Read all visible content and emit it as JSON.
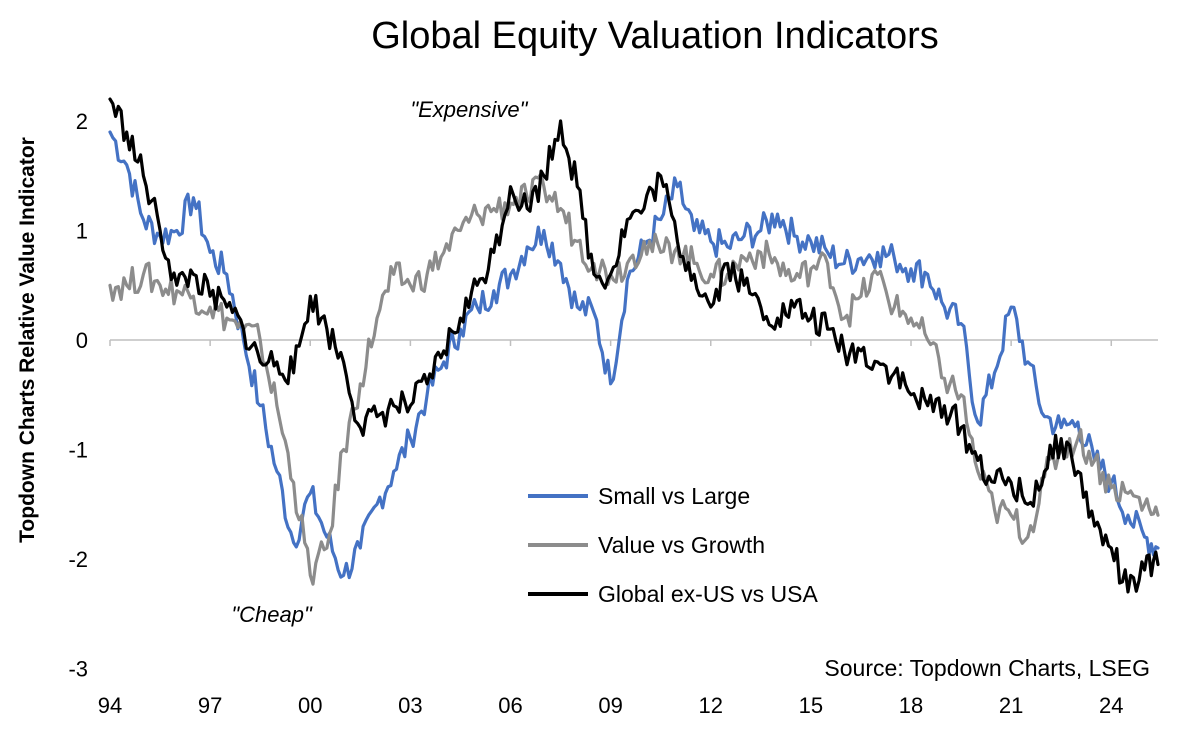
{
  "chart_data": {
    "type": "line",
    "title": "Global Equity Valuation Indicators",
    "xlabel": "",
    "ylabel": "Topdown Charts Relative Value Indicator",
    "xlim": [
      1994.0,
      2025.4
    ],
    "ylim": [
      -3,
      2.3
    ],
    "x_ticks": [
      "94",
      "97",
      "00",
      "03",
      "06",
      "09",
      "12",
      "15",
      "18",
      "21",
      "24"
    ],
    "y_ticks": [
      "-3",
      "-2",
      "-1",
      "0",
      "1",
      "2"
    ],
    "legend_position": "lower-middle",
    "source": "Source: Topdown Charts, LSEG",
    "annotations": [
      {
        "text": "\"Expensive\"",
        "x": 2007.3,
        "y": 2.1
      },
      {
        "text": "\"Cheap\"",
        "x": 1999.8,
        "y": -2.2
      }
    ],
    "x": [
      1994.0,
      1994.5,
      1995.0,
      1995.5,
      1996.0,
      1996.5,
      1997.0,
      1997.5,
      1998.0,
      1998.5,
      1999.0,
      1999.5,
      2000.0,
      2000.5,
      2001.0,
      2001.5,
      2002.0,
      2002.5,
      2003.0,
      2003.5,
      2004.0,
      2004.5,
      2005.0,
      2005.5,
      2006.0,
      2006.5,
      2007.0,
      2007.5,
      2008.0,
      2008.5,
      2009.0,
      2009.5,
      2010.0,
      2010.5,
      2011.0,
      2011.5,
      2012.0,
      2012.5,
      2013.0,
      2013.5,
      2014.0,
      2014.5,
      2015.0,
      2015.5,
      2016.0,
      2016.5,
      2017.0,
      2017.5,
      2018.0,
      2018.5,
      2019.0,
      2019.5,
      2020.0,
      2020.5,
      2021.0,
      2021.5,
      2022.0,
      2022.5,
      2023.0,
      2023.5,
      2024.0,
      2024.5,
      2025.0,
      2025.4
    ],
    "series": [
      {
        "name": "Small vs Large",
        "color": "#4472C4",
        "values": [
          1.9,
          1.6,
          1.1,
          0.95,
          1.0,
          1.3,
          0.8,
          0.6,
          0.0,
          -0.6,
          -1.2,
          -1.85,
          -1.4,
          -1.8,
          -2.15,
          -1.9,
          -1.5,
          -1.2,
          -0.9,
          -0.5,
          -0.2,
          0.1,
          0.3,
          0.45,
          0.6,
          0.85,
          1.0,
          0.7,
          0.3,
          0.25,
          -0.4,
          0.55,
          0.85,
          1.1,
          1.4,
          1.0,
          0.9,
          0.85,
          0.95,
          1.0,
          1.15,
          0.95,
          0.9,
          0.8,
          0.7,
          0.75,
          0.8,
          0.75,
          0.65,
          0.6,
          0.3,
          0.15,
          -0.75,
          -0.3,
          0.3,
          -0.2,
          -0.7,
          -0.8,
          -0.75,
          -1.1,
          -1.3,
          -1.6,
          -1.8,
          -1.9
        ]
      },
      {
        "name": "Value vs Growth",
        "color": "#8C8C8C",
        "values": [
          0.5,
          0.5,
          0.6,
          0.5,
          0.45,
          0.4,
          0.3,
          0.2,
          0.1,
          0.0,
          -0.6,
          -1.3,
          -2.15,
          -1.9,
          -1.0,
          -0.4,
          0.2,
          0.6,
          0.5,
          0.6,
          0.8,
          1.0,
          1.15,
          1.2,
          1.25,
          1.3,
          1.4,
          1.2,
          0.9,
          0.7,
          0.6,
          0.7,
          0.9,
          0.8,
          0.85,
          0.7,
          0.6,
          0.6,
          0.75,
          0.8,
          0.7,
          0.55,
          0.65,
          0.7,
          0.2,
          0.4,
          0.6,
          0.3,
          0.2,
          0.0,
          -0.35,
          -0.5,
          -1.2,
          -1.55,
          -1.6,
          -1.8,
          -1.25,
          -1.0,
          -0.9,
          -1.1,
          -1.35,
          -1.4,
          -1.5,
          -1.6
        ]
      },
      {
        "name": "Global ex-US vs USA",
        "color": "#000000",
        "values": [
          2.2,
          1.9,
          1.5,
          1.0,
          0.5,
          0.6,
          0.4,
          0.3,
          0.1,
          -0.2,
          -0.2,
          -0.3,
          0.4,
          0.1,
          -0.2,
          -0.8,
          -0.7,
          -0.6,
          -0.6,
          -0.4,
          -0.1,
          0.2,
          0.5,
          0.8,
          1.4,
          1.2,
          1.5,
          2.0,
          1.4,
          0.6,
          0.6,
          1.1,
          1.2,
          1.5,
          0.9,
          0.6,
          0.3,
          0.7,
          0.5,
          0.3,
          0.2,
          0.3,
          0.2,
          0.1,
          -0.1,
          -0.1,
          -0.2,
          -0.3,
          -0.5,
          -0.6,
          -0.6,
          -0.8,
          -1.1,
          -1.3,
          -1.3,
          -1.5,
          -1.2,
          -0.9,
          -1.2,
          -1.7,
          -1.9,
          -2.3,
          -2.1,
          -2.05
        ]
      }
    ]
  }
}
